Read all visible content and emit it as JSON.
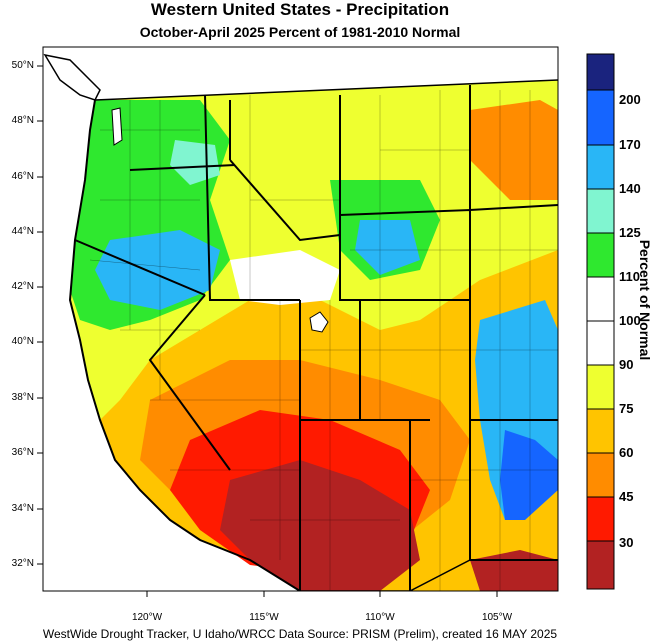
{
  "title": "Western United States - Precipitation",
  "subtitle": "October-April 2025  Percent of 1981-2010 Normal",
  "footer": "WestWide Drought Tracker, U Idaho/WRCC Data Source: PRISM (Prelim), created 16 MAY 2025",
  "colorbar": {
    "title": "Percent of Normal",
    "labels": [
      "200",
      "170",
      "140",
      "125",
      "110",
      "100",
      "90",
      "75",
      "60",
      "45",
      "30"
    ],
    "colors": [
      "#1a237e",
      "#1565ff",
      "#29b6f6",
      "#80f5d0",
      "#2fe82f",
      "#ffffff",
      "#ffffff",
      "#eeff30",
      "#ffc400",
      "#ff8c00",
      "#ff1a00",
      "#b22222"
    ]
  },
  "axes": {
    "lat_labels": [
      "50°N",
      "48°N",
      "46°N",
      "44°N",
      "42°N",
      "40°N",
      "38°N",
      "36°N",
      "34°N",
      "32°N"
    ],
    "lon_labels": [
      "120°W",
      "115°W",
      "110°W",
      "105°W"
    ]
  },
  "regions": {
    "ocean": "#ffffff",
    "no_data": "#ffffff"
  }
}
